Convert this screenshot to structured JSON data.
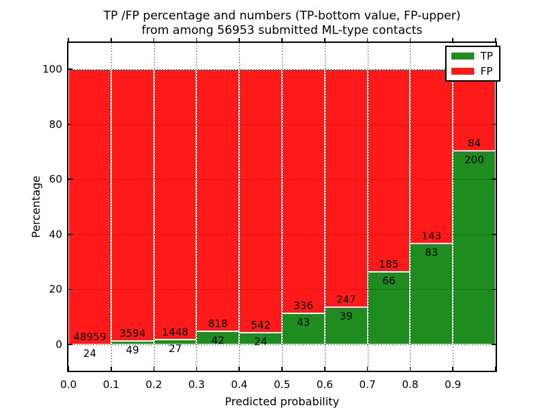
{
  "title": {
    "line1": "TP /FP percentage and numbers (TP-bottom value, FP-upper)",
    "line2": "from among 56953 submitted ML-type contacts"
  },
  "chart_data": {
    "type": "bar",
    "stacked": true,
    "title": "TP /FP percentage and numbers (TP-bottom value, FP-upper)\nfrom among 56953 submitted ML-type contacts",
    "xlabel": "Predicted probability",
    "ylabel": "Percentage",
    "total_contacts": 56953,
    "bin_width": 0.1,
    "x_tick_labels": [
      "0.0",
      "0.1",
      "0.2",
      "0.3",
      "0.4",
      "0.5",
      "0.6",
      "0.7",
      "0.8",
      "0.9"
    ],
    "y_tick_values": [
      0,
      20,
      40,
      60,
      80,
      100
    ],
    "xlim": [
      0,
      1
    ],
    "ylim": [
      -10,
      110
    ],
    "grid": true,
    "grid_style": "dotted",
    "legend_position": "upper right",
    "series": [
      {
        "name": "TP",
        "color": "#1e8c1e",
        "counts": [
          24,
          49,
          27,
          42,
          24,
          43,
          39,
          66,
          83,
          200
        ]
      },
      {
        "name": "FP",
        "color": "#ff1a1a",
        "counts": [
          48959,
          3594,
          1448,
          818,
          542,
          336,
          247,
          185,
          143,
          84
        ]
      }
    ],
    "tp_percentages": [
      0.05,
      1.35,
      1.83,
      4.88,
      4.24,
      11.35,
      13.64,
      26.29,
      36.73,
      70.42
    ],
    "bar_edge_color": "#ffffff"
  }
}
